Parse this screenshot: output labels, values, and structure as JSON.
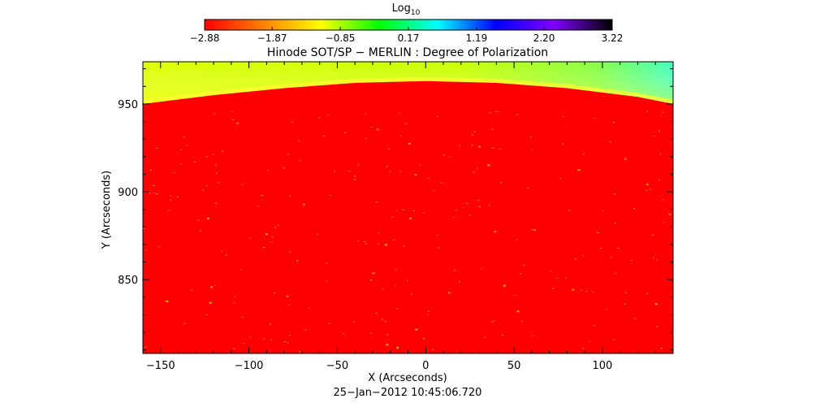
{
  "chart_data": {
    "type": "heatmap",
    "title": "Hinode SOT/SP − MERLIN : Degree of Polarization",
    "xlabel": "X (Arcseconds)",
    "ylabel": "Y (Arcseconds)",
    "footer": "25−Jan−2012 10:45:06.720",
    "xlim": [
      -160,
      140
    ],
    "ylim": [
      808,
      974
    ],
    "x_ticks": [
      -150,
      -100,
      -50,
      0,
      50,
      100
    ],
    "x_tick_labels": [
      "−150",
      "−100",
      "−50",
      "0",
      "50",
      "100"
    ],
    "y_ticks": [
      850,
      900,
      950
    ],
    "y_tick_labels": [
      "850",
      "900",
      "950"
    ],
    "colorbar": {
      "label_base": "Log",
      "label_sub": "10",
      "range": [
        -2.88,
        3.22
      ],
      "ticks": [
        -2.88,
        -1.87,
        -0.85,
        0.17,
        1.19,
        2.2,
        3.22
      ],
      "tick_labels": [
        "−2.88",
        "−1.87",
        "−0.85",
        "0.17",
        "1.19",
        "2.20",
        "3.22"
      ],
      "colormap": [
        "#ff0000",
        "#ff8000",
        "#ffff00",
        "#00ff00",
        "#00ffff",
        "#0000ff",
        "#8000ff",
        "#000000"
      ]
    },
    "limb_arc": {
      "x": [
        -160,
        -120,
        -80,
        -40,
        0,
        40,
        80,
        120,
        140
      ],
      "y": [
        950,
        955,
        959,
        962,
        963,
        962,
        959,
        954,
        950
      ]
    },
    "disk_value": -2.88,
    "offlimb_value": -1.0,
    "grid": false
  }
}
